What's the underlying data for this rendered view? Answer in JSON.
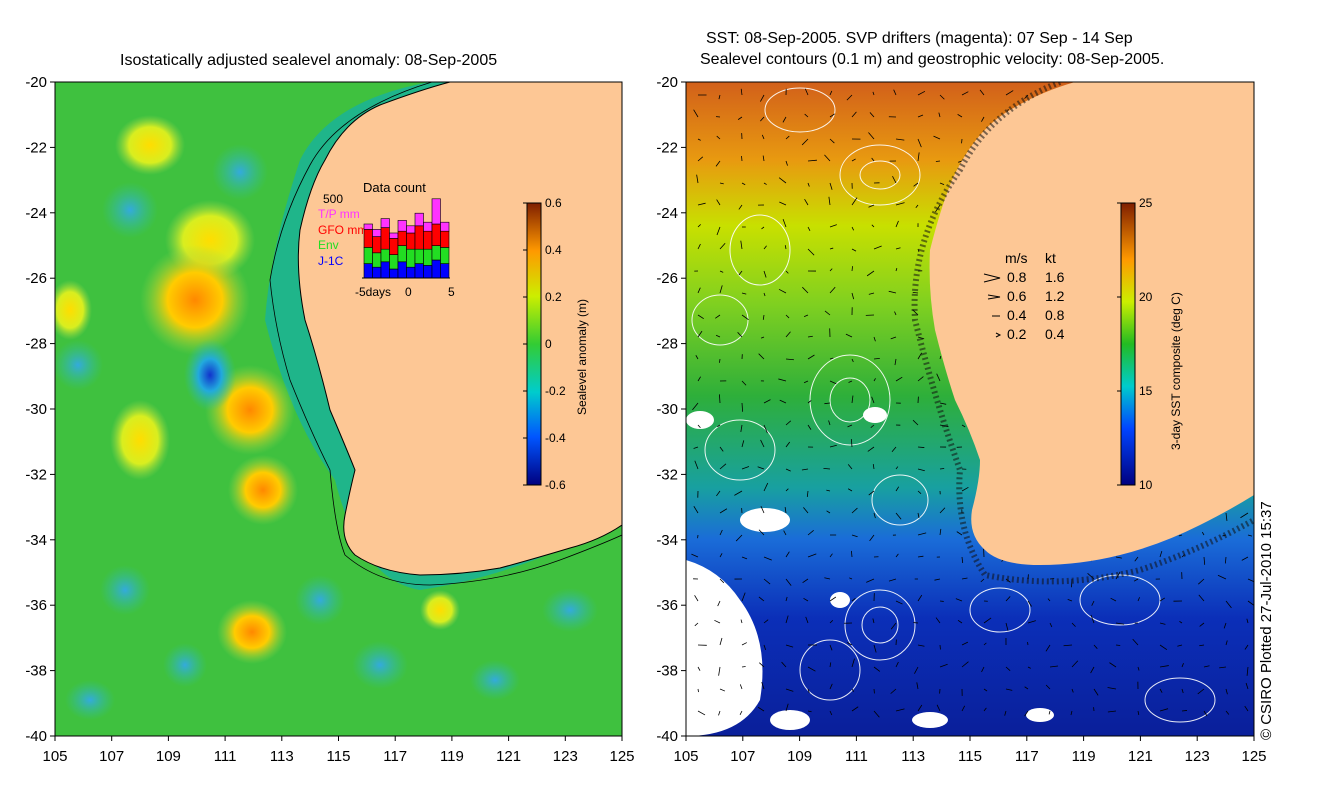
{
  "left_panel": {
    "title": "Isostatically adjusted sealevel anomaly: 08-Sep-2005",
    "colorbar": {
      "label": "Sealevel anomaly (m)",
      "ticks": [
        "0.6",
        "0.4",
        "0.2",
        "0",
        "-0.2",
        "-0.4",
        "-0.6"
      ],
      "range": [
        -0.6,
        0.6
      ]
    },
    "inset": {
      "title": "Data count",
      "ymax_label": "500",
      "legend": [
        {
          "label": "T/P mm",
          "color": "#ff33ff"
        },
        {
          "label": "GFO mm",
          "color": "#ff0000"
        },
        {
          "label": "Env",
          "color": "#22dd22"
        },
        {
          "label": "J-1C",
          "color": "#0000ff"
        }
      ],
      "xticks": [
        "-5days",
        "0",
        "5"
      ],
      "bars": [
        {
          "jc": 0.8,
          "env": 0.9,
          "gfo": 1.0,
          "tp": 0.3
        },
        {
          "jc": 0.6,
          "env": 0.8,
          "gfo": 0.9,
          "tp": 0.4
        },
        {
          "jc": 0.9,
          "env": 0.7,
          "gfo": 1.2,
          "tp": 0.5
        },
        {
          "jc": 0.5,
          "env": 0.8,
          "gfo": 0.9,
          "tp": 0.3
        },
        {
          "jc": 0.9,
          "env": 0.9,
          "gfo": 0.8,
          "tp": 0.6
        },
        {
          "jc": 0.6,
          "env": 1.0,
          "gfo": 0.9,
          "tp": 0.4
        },
        {
          "jc": 0.8,
          "env": 0.8,
          "gfo": 1.3,
          "tp": 0.7
        },
        {
          "jc": 0.7,
          "env": 0.9,
          "gfo": 1.0,
          "tp": 0.5
        },
        {
          "jc": 1.0,
          "env": 0.8,
          "gfo": 1.2,
          "tp": 1.4
        },
        {
          "jc": 0.8,
          "env": 0.9,
          "gfo": 0.9,
          "tp": 0.5
        }
      ]
    }
  },
  "right_panel": {
    "title_line1": "SST: 08-Sep-2005. SVP drifters (magenta): 07 Sep - 14 Sep",
    "title_line2": "Sealevel contours (0.1 m) and geostrophic velocity: 08-Sep-2005.",
    "colorbar": {
      "label": "3-day SST composite (deg C)",
      "ticks": [
        "25",
        "20",
        "15",
        "10"
      ],
      "range": [
        10,
        25
      ]
    },
    "velocity_legend": {
      "header_ms": "m/s",
      "header_kt": "kt",
      "rows": [
        {
          "ms": "0.8",
          "kt": "1.6"
        },
        {
          "ms": "0.6",
          "kt": "1.2"
        },
        {
          "ms": "0.4",
          "kt": "0.8"
        },
        {
          "ms": "0.2",
          "kt": "0.4"
        }
      ]
    }
  },
  "axes": {
    "lat_labels": [
      "-20",
      "-22",
      "-24",
      "-26",
      "-28",
      "-30",
      "-32",
      "-34",
      "-36",
      "-38",
      "-40"
    ],
    "lon_labels": [
      "105",
      "107",
      "109",
      "111",
      "113",
      "115",
      "117",
      "119",
      "121",
      "123",
      "125"
    ]
  },
  "credit": "© CSIRO Plotted 27-Jul-2010 15:37",
  "colors": {
    "land": "#fdc795",
    "sla_background": "#3fc13f",
    "sst_warm": "#d2691e",
    "sst_cold": "#0b2fb8"
  }
}
